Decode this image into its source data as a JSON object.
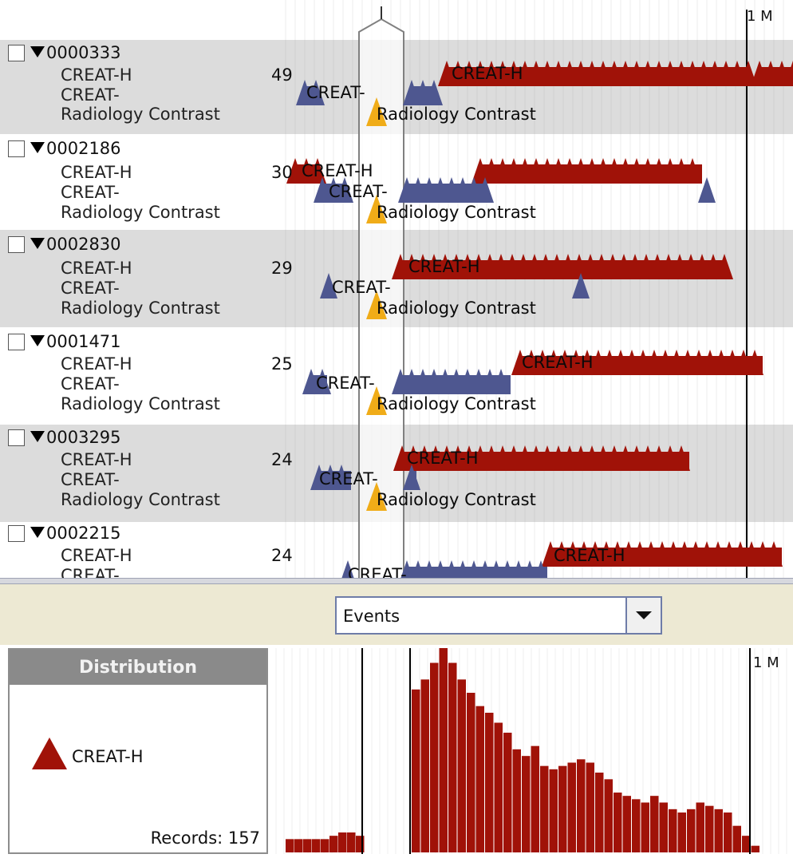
{
  "timeline": {
    "tick_label": "1 M",
    "records": [
      {
        "id": "0000333",
        "count": "49",
        "labels": [
          "CREAT-H",
          "CREAT-",
          "Radiology Contrast"
        ]
      },
      {
        "id": "0002186",
        "count": "30",
        "labels": [
          "CREAT-H",
          "CREAT-",
          "Radiology Contrast"
        ]
      },
      {
        "id": "0002830",
        "count": "29",
        "labels": [
          "CREAT-H",
          "CREAT-",
          "Radiology Contrast"
        ]
      },
      {
        "id": "0001471",
        "count": "25",
        "labels": [
          "CREAT-H",
          "CREAT-",
          "Radiology Contrast"
        ]
      },
      {
        "id": "0003295",
        "count": "24",
        "labels": [
          "CREAT-H",
          "CREAT-",
          "Radiology Contrast"
        ]
      },
      {
        "id": "0002215",
        "count": "24",
        "labels": [
          "CREAT-H",
          "CREAT-"
        ]
      }
    ],
    "event_labels": {
      "high": "CREAT-H",
      "low": "CREAT-",
      "contrast": "Radiology Contrast"
    },
    "colors": {
      "high": "#a01208",
      "low": "#4e5790",
      "contrast": "#f0ac18",
      "row_alt": "#dcdcdc",
      "row_base": "#ffffff"
    }
  },
  "control": {
    "dropdown_value": "Events"
  },
  "distribution": {
    "title": "Distribution",
    "legend_label": "CREAT-H",
    "records_label": "Records: 157",
    "tick_label": "1 M",
    "color": "#a01208"
  },
  "chart_data": {
    "type": "bar",
    "title": "",
    "xlabel": "",
    "ylabel": "",
    "series": [
      {
        "values": [
          4,
          4,
          4,
          4,
          4,
          5,
          6,
          6,
          5,
          49,
          52,
          57,
          64,
          57,
          52,
          48,
          44,
          42,
          39,
          36,
          31,
          29,
          32,
          26,
          25,
          26,
          27,
          28,
          27,
          24,
          22,
          18,
          17,
          16,
          15,
          17,
          15,
          13,
          12,
          13,
          15,
          14,
          13,
          12,
          8,
          5,
          2
        ]
      }
    ]
  }
}
